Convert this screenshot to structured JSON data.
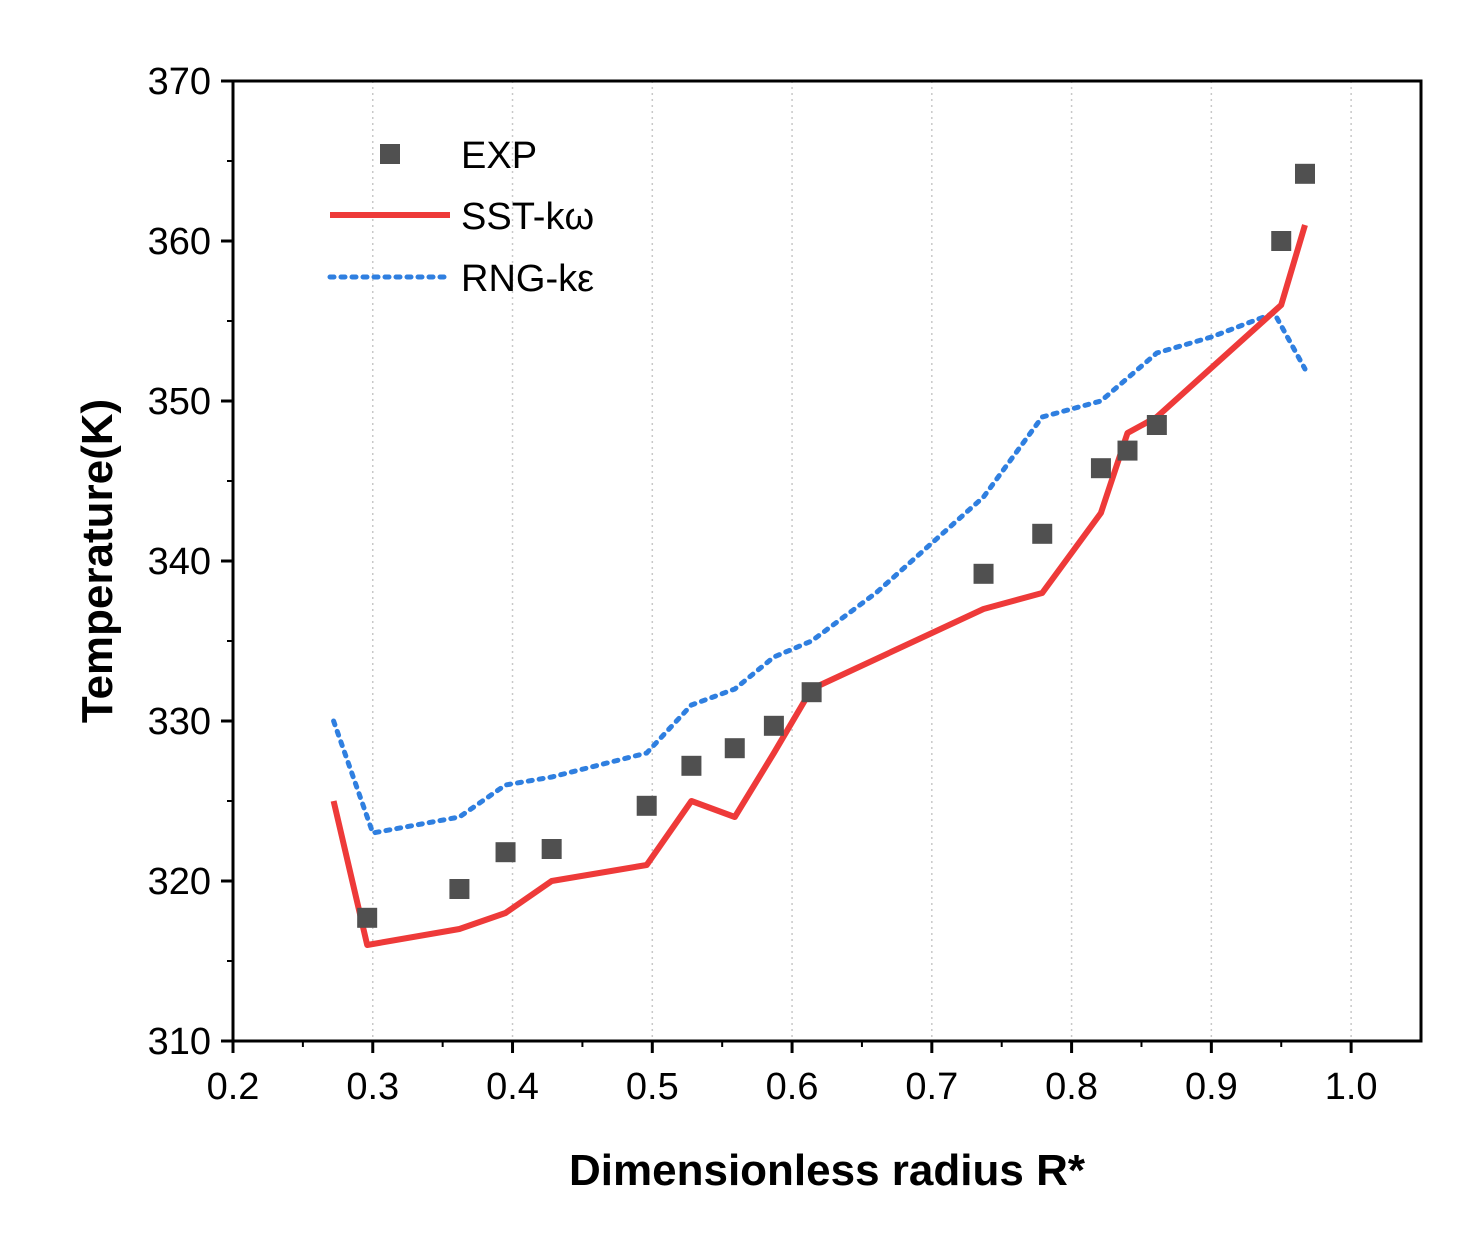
{
  "chart_data": {
    "type": "line",
    "title": "",
    "xlabel": "Dimensionless radius R*",
    "ylabel": "Temperature(K)",
    "xlim": [
      0.2,
      1.05
    ],
    "ylim": [
      310,
      370
    ],
    "xticks": [
      0.2,
      0.3,
      0.4,
      0.5,
      0.6,
      0.7,
      0.8,
      0.9,
      1.0
    ],
    "xtick_labels": [
      "0.2",
      "0.3",
      "0.4",
      "0.5",
      "0.6",
      "0.7",
      "0.8",
      "0.9",
      "1.0"
    ],
    "yticks": [
      310,
      320,
      330,
      340,
      350,
      360,
      370
    ],
    "ytick_labels": [
      "310",
      "320",
      "330",
      "340",
      "350",
      "360",
      "370"
    ],
    "grid": "vertical dotted",
    "legend_position": "top-left",
    "series": [
      {
        "name": "EXP",
        "style": "marker-square",
        "color": "#505050",
        "x": [
          0.296,
          0.362,
          0.395,
          0.428,
          0.496,
          0.528,
          0.559,
          0.587,
          0.614,
          0.737,
          0.779,
          0.821,
          0.84,
          0.861,
          0.95,
          0.967
        ],
        "y": [
          317.7,
          319.5,
          321.8,
          322.0,
          324.7,
          327.2,
          328.3,
          329.7,
          331.8,
          339.2,
          341.7,
          345.8,
          346.9,
          348.5,
          360.0,
          364.2
        ]
      },
      {
        "name": "SST-kω",
        "style": "solid-line",
        "color": "#ee3a39",
        "x": [
          0.272,
          0.296,
          0.362,
          0.395,
          0.428,
          0.496,
          0.528,
          0.559,
          0.587,
          0.614,
          0.737,
          0.779,
          0.821,
          0.84,
          0.861,
          0.95,
          0.967
        ],
        "y": [
          325,
          316,
          317,
          318,
          320,
          321,
          325,
          324,
          328,
          332,
          337,
          338,
          343,
          348,
          349,
          356,
          361
        ]
      },
      {
        "name": "RNG-kε",
        "style": "dotted-line",
        "color": "#2f7fe0",
        "x": [
          0.272,
          0.3,
          0.362,
          0.395,
          0.428,
          0.496,
          0.528,
          0.559,
          0.587,
          0.614,
          0.66,
          0.737,
          0.779,
          0.821,
          0.861,
          0.9,
          0.945,
          0.967
        ],
        "y": [
          330,
          323,
          324,
          326,
          326.5,
          328,
          331,
          332,
          334,
          335,
          338,
          344,
          349,
          350,
          353,
          354,
          355.5,
          352
        ]
      }
    ]
  }
}
